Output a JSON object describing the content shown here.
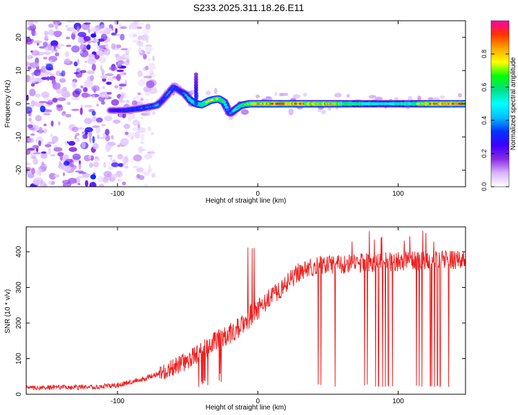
{
  "figure": {
    "title": "S233.2025.311.18.26.E11"
  },
  "chart_data": [
    {
      "type": "heatmap",
      "name": "spectrogram",
      "xlabel": "Height of straight line (km)",
      "ylabel": "Frequency (Hz)",
      "xlim": [
        -165,
        148
      ],
      "ylim": [
        -25,
        25
      ],
      "x_ticks": [
        -100,
        0,
        100
      ],
      "y_ticks": [
        -20,
        -10,
        0,
        10,
        20
      ],
      "colorbar": {
        "label": "Normalized spectral amplitude",
        "range": [
          0,
          1
        ],
        "ticks": [
          0.0,
          0.2,
          0.4,
          0.6,
          0.8
        ],
        "tick_labels": [
          "0.0",
          "0.2",
          "0.4",
          "0.6",
          "0.8"
        ],
        "colors": [
          "#ffffff",
          "#d7b4ff",
          "#8a2be2",
          "#3a00ff",
          "#0033ff",
          "#00bfff",
          "#00ffff",
          "#00e08a",
          "#00ff00",
          "#ffff00",
          "#ffa500",
          "#ff3300",
          "#ff00aa"
        ]
      },
      "ridge": {
        "x": [
          -105,
          -95,
          -85,
          -78,
          -72,
          -68,
          -64,
          -60,
          -56,
          -52,
          -48,
          -44,
          -40,
          -34,
          -28,
          -24,
          -20,
          -17,
          -12,
          -6,
          0,
          10,
          20,
          30,
          40,
          50,
          60,
          70,
          80,
          90,
          100,
          110,
          120,
          130,
          140,
          148
        ],
        "y": [
          -2,
          -2,
          -1.5,
          -1,
          -0.5,
          1,
          3,
          5,
          4,
          3,
          1,
          0,
          -0.3,
          1,
          1.5,
          0.5,
          -3,
          -2,
          -0.5,
          0,
          0,
          0,
          0,
          0,
          0,
          0,
          0,
          0,
          0,
          0,
          0,
          0,
          0,
          0,
          0,
          0
        ],
        "amplitude": [
          0.25,
          0.3,
          0.35,
          0.35,
          0.4,
          0.3,
          0.35,
          0.35,
          0.3,
          0.4,
          0.5,
          0.6,
          0.65,
          0.7,
          0.7,
          0.55,
          0.35,
          0.45,
          0.6,
          0.7,
          0.8,
          0.85,
          0.9,
          0.85,
          0.75,
          0.8,
          0.65,
          0.6,
          0.55,
          0.5,
          0.55,
          0.6,
          0.8,
          0.85,
          0.9,
          0.9
        ]
      },
      "spike_at": {
        "x": -44,
        "peak_y": 9
      },
      "noise_region": {
        "x_range": [
          -165,
          -80
        ],
        "y_range": [
          -25,
          25
        ]
      }
    },
    {
      "type": "line",
      "name": "snr",
      "xlabel": "Height of straight line (km)",
      "ylabel": "SNR (10 * v/v)",
      "xlim": [
        -165,
        148
      ],
      "ylim": [
        0,
        470
      ],
      "x_ticks": [
        -100,
        0,
        100
      ],
      "y_ticks": [
        0,
        100,
        200,
        300,
        400
      ],
      "color": "#ee2222",
      "trend": {
        "x": [
          -165,
          -120,
          -100,
          -90,
          -80,
          -70,
          -60,
          -50,
          -40,
          -30,
          -20,
          -10,
          0,
          10,
          20,
          30,
          40,
          60,
          80,
          100,
          120,
          140,
          148
        ],
        "y": [
          18,
          20,
          25,
          35,
          45,
          60,
          75,
          95,
          120,
          150,
          170,
          200,
          240,
          275,
          310,
          345,
          360,
          365,
          370,
          372,
          375,
          378,
          378
        ]
      },
      "dropouts_x": [
        43,
        45,
        55,
        76,
        78,
        84,
        86,
        89,
        91,
        93,
        96,
        113,
        115,
        117,
        123,
        124,
        126,
        128,
        130,
        136
      ],
      "dropout_floor": 20
    }
  ]
}
